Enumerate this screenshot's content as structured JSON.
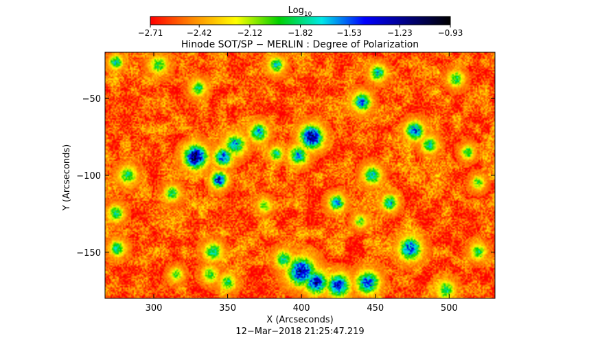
{
  "chart_data": {
    "type": "heatmap",
    "title": "Hinode SOT/SP − MERLIN : Degree of Polarization",
    "xlabel": "X (Arcseconds)",
    "ylabel": "Y (Arcseconds)",
    "xlim": [
      267,
      531
    ],
    "ylim": [
      -180,
      -20
    ],
    "x_ticks": [
      300,
      350,
      400,
      450,
      500
    ],
    "y_ticks": [
      -50,
      -100,
      -150
    ],
    "x_tick_labels": [
      "300",
      "350",
      "400",
      "450",
      "500"
    ],
    "y_tick_labels": [
      "−50",
      "−100",
      "−150"
    ],
    "colorbar": {
      "label_base": "Log",
      "label_sub": "10",
      "range": [
        -2.71,
        -0.93
      ],
      "tick_values": [
        -2.71,
        -2.42,
        -2.12,
        -1.82,
        -1.53,
        -1.23,
        -0.93
      ],
      "tick_labels": [
        "−2.71",
        "−2.42",
        "−2.12",
        "−1.82",
        "−1.53",
        "−1.23",
        "−0.93"
      ],
      "colors": [
        "#ff0000",
        "#ff8c00",
        "#ffff00",
        "#00d000",
        "#00e8e8",
        "#0000ff",
        "#000080",
        "#000000"
      ]
    },
    "background_level": -2.55,
    "features": [
      {
        "x": 328,
        "y": -88,
        "peak": -1.05,
        "spread": 5.0
      },
      {
        "x": 344,
        "y": -103,
        "peak": -1.35,
        "spread": 3.5
      },
      {
        "x": 347,
        "y": -88,
        "peak": -1.45,
        "spread": 4.0
      },
      {
        "x": 355,
        "y": -80,
        "peak": -1.6,
        "spread": 4.5
      },
      {
        "x": 371,
        "y": -72,
        "peak": -1.6,
        "spread": 4.0
      },
      {
        "x": 407,
        "y": -75,
        "peak": -1.1,
        "spread": 5.0
      },
      {
        "x": 398,
        "y": -87,
        "peak": -1.6,
        "spread": 4.0
      },
      {
        "x": 383,
        "y": -86,
        "peak": -1.75,
        "spread": 3.0
      },
      {
        "x": 424,
        "y": -118,
        "peak": -1.6,
        "spread": 3.5
      },
      {
        "x": 441,
        "y": -52,
        "peak": -1.5,
        "spread": 4.0
      },
      {
        "x": 452,
        "y": -33,
        "peak": -1.7,
        "spread": 3.5
      },
      {
        "x": 383,
        "y": -28,
        "peak": -1.75,
        "spread": 3.5
      },
      {
        "x": 330,
        "y": -43,
        "peak": -1.85,
        "spread": 3.5
      },
      {
        "x": 303,
        "y": -28,
        "peak": -1.9,
        "spread": 4.0
      },
      {
        "x": 274,
        "y": -26,
        "peak": -1.7,
        "spread": 3.0
      },
      {
        "x": 477,
        "y": -71,
        "peak": -1.45,
        "spread": 4.0
      },
      {
        "x": 487,
        "y": -80,
        "peak": -1.75,
        "spread": 3.5
      },
      {
        "x": 513,
        "y": -85,
        "peak": -1.85,
        "spread": 3.0
      },
      {
        "x": 448,
        "y": -100,
        "peak": -1.7,
        "spread": 4.0
      },
      {
        "x": 460,
        "y": -118,
        "peak": -1.7,
        "spread": 3.5
      },
      {
        "x": 474,
        "y": -148,
        "peak": -1.45,
        "spread": 5.0
      },
      {
        "x": 400,
        "y": -163,
        "peak": -1.25,
        "spread": 6.0
      },
      {
        "x": 410,
        "y": -170,
        "peak": -1.3,
        "spread": 5.0
      },
      {
        "x": 425,
        "y": -172,
        "peak": -1.35,
        "spread": 5.0
      },
      {
        "x": 445,
        "y": -170,
        "peak": -1.45,
        "spread": 5.0
      },
      {
        "x": 388,
        "y": -155,
        "peak": -1.8,
        "spread": 4.0
      },
      {
        "x": 340,
        "y": -150,
        "peak": -1.75,
        "spread": 4.0
      },
      {
        "x": 338,
        "y": -165,
        "peak": -1.9,
        "spread": 3.5
      },
      {
        "x": 282,
        "y": -100,
        "peak": -1.85,
        "spread": 4.0
      },
      {
        "x": 275,
        "y": -148,
        "peak": -1.75,
        "spread": 3.5
      },
      {
        "x": 274,
        "y": -125,
        "peak": -1.8,
        "spread": 3.5
      },
      {
        "x": 312,
        "y": -112,
        "peak": -1.85,
        "spread": 3.5
      },
      {
        "x": 375,
        "y": -120,
        "peak": -1.95,
        "spread": 3.0
      },
      {
        "x": 505,
        "y": -37,
        "peak": -1.85,
        "spread": 3.5
      },
      {
        "x": 520,
        "y": -105,
        "peak": -1.95,
        "spread": 3.0
      },
      {
        "x": 498,
        "y": -175,
        "peak": -1.85,
        "spread": 4.0
      },
      {
        "x": 350,
        "y": -170,
        "peak": -1.85,
        "spread": 3.5
      },
      {
        "x": 440,
        "y": -130,
        "peak": -1.95,
        "spread": 3.0
      },
      {
        "x": 315,
        "y": -165,
        "peak": -1.95,
        "spread": 3.0
      },
      {
        "x": 520,
        "y": -150,
        "peak": -1.9,
        "spread": 3.5
      }
    ]
  },
  "timestamp": "12−Mar−2018 21:25:47.219"
}
